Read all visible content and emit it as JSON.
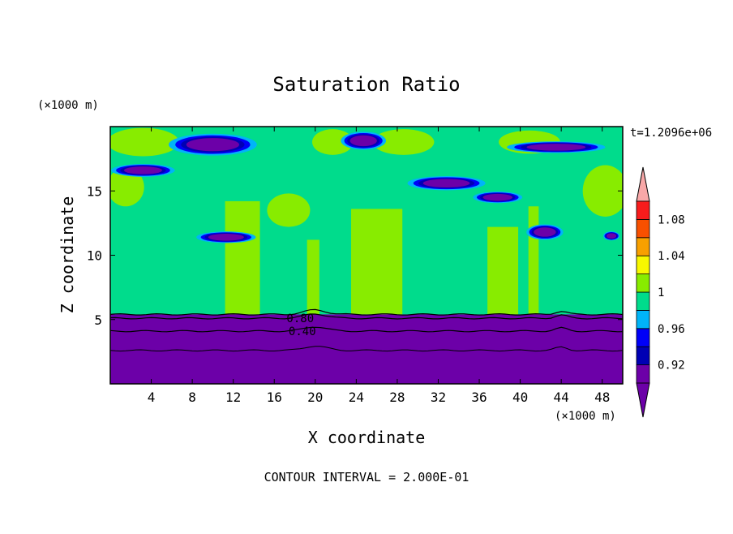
{
  "chart_data": {
    "type": "heatmap",
    "title": "Saturation Ratio",
    "xlabel": "X coordinate",
    "ylabel": "Z coordinate",
    "x_units": "(×1000 m)",
    "y_units": "(×1000 m)",
    "time_label": "t=1.2096e+06",
    "footer": "CONTOUR INTERVAL = 2.000E-01",
    "xlim": [
      0,
      50
    ],
    "ylim": [
      0,
      20
    ],
    "x_ticks": [
      4,
      8,
      12,
      16,
      20,
      24,
      28,
      32,
      36,
      40,
      44,
      48
    ],
    "y_ticks": [
      5,
      10,
      15
    ],
    "contour_labels": [
      {
        "text": "0.80",
        "x": 17.2,
        "z": 5.1
      },
      {
        "text": "0.40",
        "x": 17.4,
        "z": 4.1
      }
    ],
    "colorbar": {
      "levels": [
        0.9,
        0.92,
        0.94,
        0.96,
        0.98,
        1.0,
        1.02,
        1.04,
        1.06,
        1.08,
        1.1
      ],
      "tick_labels": [
        "0.92",
        "0.96",
        "1",
        "1.04",
        "1.08"
      ],
      "tick_values": [
        0.92,
        0.96,
        1.0,
        1.04,
        1.08
      ],
      "colors": [
        "#6c00a8",
        "#0000b4",
        "#0000f8",
        "#00b4f8",
        "#00dc8c",
        "#88ec00",
        "#f8f800",
        "#f8a000",
        "#f85000",
        "#f81c1c"
      ],
      "under_color": "#6c00a8",
      "over_color": "#f8a8a8"
    },
    "regions": {
      "base_color": "#00dc8c",
      "lower_layer_color": "#6c00a8",
      "lower_layer_top_z": 5.4,
      "green_columns": [
        {
          "x0": 11.2,
          "x1": 14.6,
          "z_top": 14.2
        },
        {
          "x0": 23.5,
          "x1": 28.5,
          "z_top": 13.6
        },
        {
          "x0": 36.8,
          "x1": 39.8,
          "z_top": 12.2
        },
        {
          "x0": 40.8,
          "x1": 41.8,
          "z_top": 13.8
        },
        {
          "x0": 19.2,
          "x1": 20.4,
          "z_top": 11.2
        }
      ],
      "green_blobs": [
        {
          "x": 3.2,
          "z": 18.8,
          "rx": 3.5,
          "rz": 1.1
        },
        {
          "x": 21.7,
          "z": 18.8,
          "rx": 2.0,
          "rz": 1.0
        },
        {
          "x": 28.6,
          "z": 18.8,
          "rx": 3.0,
          "rz": 1.0
        },
        {
          "x": 40.9,
          "z": 18.8,
          "rx": 3.0,
          "rz": 0.9
        },
        {
          "x": 48.3,
          "z": 15.0,
          "rx": 2.2,
          "rz": 2.0
        },
        {
          "x": 1.5,
          "z": 15.3,
          "rx": 1.8,
          "rz": 1.5
        },
        {
          "x": 17.4,
          "z": 13.5,
          "rx": 2.1,
          "rz": 1.3
        }
      ],
      "cirrus": [
        {
          "x": 10.0,
          "z": 18.6,
          "rx": 4.3,
          "rz": 0.85
        },
        {
          "x": 3.2,
          "z": 16.6,
          "rx": 3.1,
          "rz": 0.5
        },
        {
          "x": 24.7,
          "z": 18.9,
          "rx": 2.2,
          "rz": 0.7
        },
        {
          "x": 32.8,
          "z": 15.6,
          "rx": 3.8,
          "rz": 0.55
        },
        {
          "x": 37.8,
          "z": 14.5,
          "rx": 2.4,
          "rz": 0.45
        },
        {
          "x": 43.5,
          "z": 18.4,
          "rx": 4.8,
          "rz": 0.45
        },
        {
          "x": 42.4,
          "z": 11.8,
          "rx": 1.8,
          "rz": 0.6
        },
        {
          "x": 11.3,
          "z": 11.4,
          "rx": 2.9,
          "rz": 0.45
        },
        {
          "x": 48.9,
          "z": 11.5,
          "rx": 0.8,
          "rz": 0.35
        }
      ]
    },
    "grid": false
  }
}
